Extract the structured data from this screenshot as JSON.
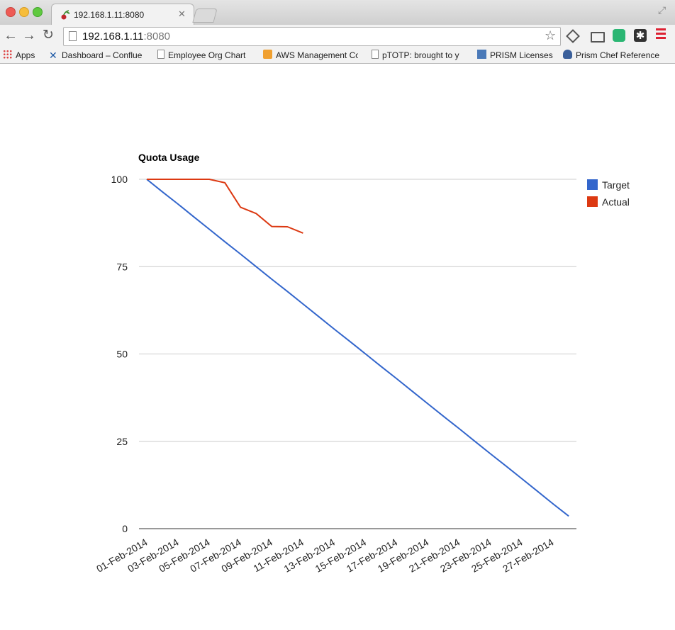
{
  "browser": {
    "tab_title": "192.168.1.11:8080",
    "url_host": "192.168.1.11",
    "url_port": ":8080"
  },
  "bookmarks": [
    {
      "label": "Apps",
      "icon": "apps-grid-icon"
    },
    {
      "label": "Dashboard – Conflue",
      "icon": "confluence-icon"
    },
    {
      "label": "Employee Org Chart",
      "icon": "page-icon"
    },
    {
      "label": "AWS Management Co",
      "icon": "aws-icon"
    },
    {
      "label": "pTOTP: brought to y",
      "icon": "page-icon"
    },
    {
      "label": "PRISM Licenses",
      "icon": "prism-icon"
    },
    {
      "label": "Prism Chef Reference",
      "icon": "chef-icon"
    }
  ],
  "chart_data": {
    "type": "line",
    "title": "Quota Usage",
    "xlabel": "",
    "ylabel": "",
    "x": [
      "01-Feb-2014",
      "02-Feb-2014",
      "03-Feb-2014",
      "04-Feb-2014",
      "05-Feb-2014",
      "06-Feb-2014",
      "07-Feb-2014",
      "08-Feb-2014",
      "09-Feb-2014",
      "10-Feb-2014",
      "11-Feb-2014",
      "12-Feb-2014",
      "13-Feb-2014",
      "14-Feb-2014",
      "15-Feb-2014",
      "16-Feb-2014",
      "17-Feb-2014",
      "18-Feb-2014",
      "19-Feb-2014",
      "20-Feb-2014",
      "21-Feb-2014",
      "22-Feb-2014",
      "23-Feb-2014",
      "24-Feb-2014",
      "25-Feb-2014",
      "26-Feb-2014",
      "27-Feb-2014",
      "28-Feb-2014"
    ],
    "x_tick_labels": [
      "01-Feb-2014",
      "03-Feb-2014",
      "05-Feb-2014",
      "07-Feb-2014",
      "09-Feb-2014",
      "11-Feb-2014",
      "13-Feb-2014",
      "15-Feb-2014",
      "17-Feb-2014",
      "19-Feb-2014",
      "21-Feb-2014",
      "23-Feb-2014",
      "25-Feb-2014",
      "27-Feb-2014"
    ],
    "y_ticks": [
      0,
      25,
      50,
      75,
      100
    ],
    "ylim": [
      0,
      100
    ],
    "grid": true,
    "legend_position": "right",
    "series": [
      {
        "name": "Target",
        "color": "#3366cc",
        "values": [
          100,
          96.4,
          92.9,
          89.3,
          85.7,
          82.1,
          78.6,
          75.0,
          71.4,
          67.9,
          64.3,
          60.7,
          57.1,
          53.6,
          50.0,
          46.4,
          42.9,
          39.3,
          35.7,
          32.1,
          28.6,
          25.0,
          21.4,
          17.9,
          14.3,
          10.7,
          7.1,
          3.6
        ]
      },
      {
        "name": "Actual",
        "color": "#dc3912",
        "values": [
          100,
          100,
          100,
          100,
          100,
          99,
          92,
          90.2,
          86.5,
          86.4,
          84.6,
          null,
          null,
          null,
          null,
          null,
          null,
          null,
          null,
          null,
          null,
          null,
          null,
          null,
          null,
          null,
          null,
          null
        ]
      }
    ]
  }
}
